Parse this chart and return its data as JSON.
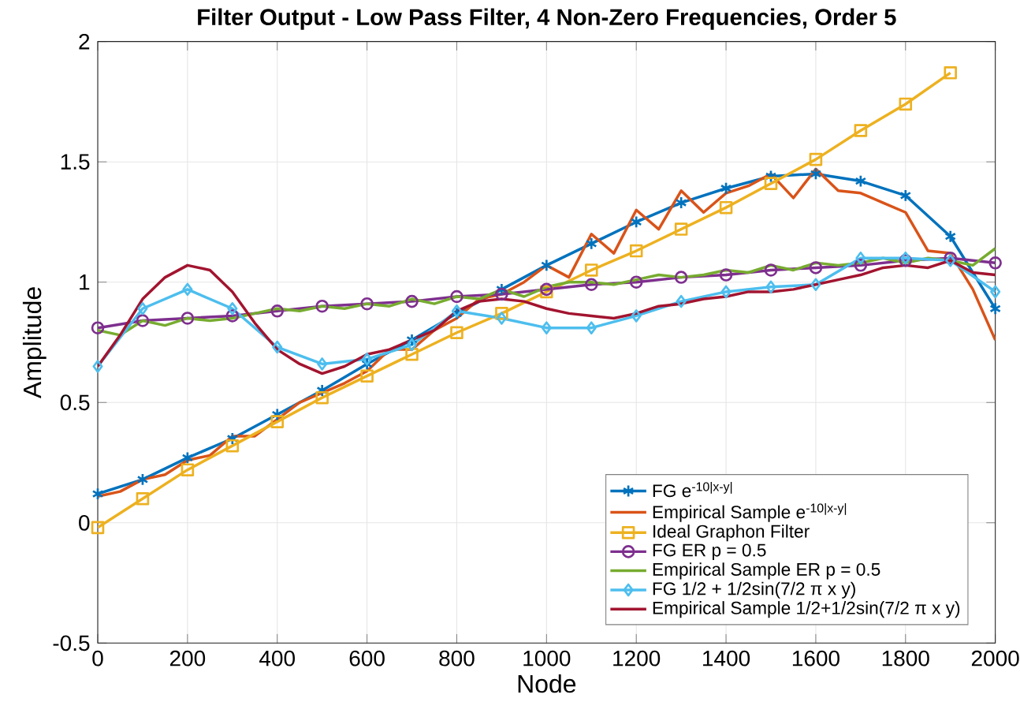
{
  "chart_data": {
    "type": "line",
    "title": "Filter Output - Low Pass Filter, 4 Non-Zero Frequencies, Order 5",
    "xlabel": "Node",
    "ylabel": "Amplitude",
    "xlim": [
      0,
      2000
    ],
    "ylim": [
      -0.5,
      2
    ],
    "xticks": [
      0,
      200,
      400,
      600,
      800,
      1000,
      1200,
      1400,
      1600,
      1800,
      2000
    ],
    "yticks": [
      -0.5,
      0,
      0.5,
      1,
      1.5,
      2
    ],
    "grid": true,
    "legend": "bottom right",
    "series": [
      {
        "name": "FG e$^{-10|x-y|}$",
        "color": "#0072bd",
        "marker": "cross",
        "x": [
          0,
          100,
          200,
          300,
          400,
          500,
          600,
          700,
          800,
          900,
          1000,
          1100,
          1200,
          1300,
          1400,
          1500,
          1600,
          1700,
          1800,
          1900,
          2000
        ],
        "values": [
          0.12,
          0.18,
          0.27,
          0.35,
          0.45,
          0.55,
          0.66,
          0.76,
          0.87,
          0.97,
          1.07,
          1.16,
          1.25,
          1.33,
          1.39,
          1.44,
          1.45,
          1.42,
          1.36,
          1.19,
          0.89
        ]
      },
      {
        "name": "Empirical Sample e$^{-10|x-y|}$",
        "color": "#d95319",
        "marker": "none",
        "x": [
          0,
          50,
          100,
          150,
          200,
          250,
          300,
          350,
          400,
          450,
          500,
          550,
          600,
          650,
          700,
          750,
          800,
          850,
          900,
          950,
          1000,
          1050,
          1100,
          1150,
          1200,
          1250,
          1300,
          1350,
          1400,
          1450,
          1500,
          1550,
          1600,
          1650,
          1700,
          1750,
          1800,
          1850,
          1900,
          1950,
          2000
        ],
        "values": [
          0.11,
          0.13,
          0.18,
          0.2,
          0.26,
          0.28,
          0.36,
          0.36,
          0.43,
          0.5,
          0.54,
          0.58,
          0.63,
          0.72,
          0.72,
          0.8,
          0.85,
          0.93,
          0.95,
          1.0,
          1.07,
          1.02,
          1.2,
          1.12,
          1.3,
          1.22,
          1.38,
          1.29,
          1.37,
          1.4,
          1.45,
          1.35,
          1.47,
          1.38,
          1.37,
          1.33,
          1.29,
          1.13,
          1.12,
          0.97,
          0.76
        ]
      },
      {
        "name": "Ideal Graphon Filter",
        "color": "#edb120",
        "marker": "square",
        "x": [
          0,
          100,
          200,
          300,
          400,
          500,
          600,
          700,
          800,
          900,
          1000,
          1100,
          1200,
          1300,
          1400,
          1500,
          1600,
          1700,
          1800,
          1900
        ],
        "values": [
          -0.02,
          0.1,
          0.22,
          0.32,
          0.42,
          0.52,
          0.61,
          0.7,
          0.79,
          0.87,
          0.96,
          1.05,
          1.13,
          1.22,
          1.31,
          1.41,
          1.51,
          1.63,
          1.74,
          1.87
        ]
      },
      {
        "name": "FG ER p = 0.5",
        "color": "#7e2f8e",
        "marker": "circle",
        "x": [
          0,
          100,
          200,
          300,
          400,
          500,
          600,
          700,
          800,
          900,
          1000,
          1100,
          1200,
          1300,
          1400,
          1500,
          1600,
          1700,
          1800,
          1900,
          2000
        ],
        "values": [
          0.81,
          0.84,
          0.85,
          0.86,
          0.88,
          0.9,
          0.91,
          0.92,
          0.94,
          0.95,
          0.97,
          0.99,
          1.0,
          1.02,
          1.03,
          1.05,
          1.06,
          1.07,
          1.09,
          1.1,
          1.08
        ]
      },
      {
        "name": "Empirical Sample ER p = 0.5",
        "color": "#77ac30",
        "marker": "none",
        "x": [
          0,
          50,
          100,
          150,
          200,
          250,
          300,
          350,
          400,
          450,
          500,
          550,
          600,
          650,
          700,
          750,
          800,
          850,
          900,
          950,
          1000,
          1050,
          1100,
          1150,
          1200,
          1250,
          1300,
          1350,
          1400,
          1450,
          1500,
          1550,
          1600,
          1650,
          1700,
          1750,
          1800,
          1850,
          1900,
          1950,
          2000
        ],
        "values": [
          0.8,
          0.78,
          0.84,
          0.82,
          0.85,
          0.84,
          0.85,
          0.87,
          0.89,
          0.88,
          0.9,
          0.89,
          0.91,
          0.9,
          0.93,
          0.91,
          0.94,
          0.93,
          0.97,
          0.94,
          0.98,
          1.0,
          1.0,
          0.99,
          1.01,
          1.03,
          1.02,
          1.03,
          1.05,
          1.04,
          1.07,
          1.05,
          1.08,
          1.07,
          1.08,
          1.1,
          1.08,
          1.1,
          1.09,
          1.07,
          1.14
        ]
      },
      {
        "name": "FG 1/2 + 1/2sin(7/2 π x y)",
        "color": "#4dbeee",
        "marker": "diamond",
        "x": [
          0,
          100,
          200,
          300,
          400,
          500,
          600,
          700,
          800,
          900,
          1000,
          1100,
          1200,
          1300,
          1400,
          1500,
          1600,
          1700,
          1800,
          1900,
          2000
        ],
        "values": [
          0.65,
          0.89,
          0.97,
          0.89,
          0.73,
          0.66,
          0.68,
          0.74,
          0.88,
          0.85,
          0.81,
          0.81,
          0.86,
          0.92,
          0.96,
          0.98,
          0.99,
          1.1,
          1.1,
          1.09,
          0.96
        ]
      },
      {
        "name": "Empirical Sample 1/2+1/2sin(7/2 π x y)",
        "color": "#a2142f",
        "marker": "none",
        "x": [
          0,
          50,
          100,
          150,
          200,
          250,
          300,
          350,
          400,
          450,
          500,
          550,
          600,
          650,
          700,
          750,
          800,
          850,
          900,
          950,
          1000,
          1050,
          1100,
          1150,
          1200,
          1250,
          1300,
          1350,
          1400,
          1450,
          1500,
          1550,
          1600,
          1650,
          1700,
          1750,
          1800,
          1850,
          1900,
          1950,
          2000
        ],
        "values": [
          0.65,
          0.78,
          0.93,
          1.02,
          1.07,
          1.05,
          0.96,
          0.83,
          0.72,
          0.66,
          0.62,
          0.65,
          0.7,
          0.72,
          0.76,
          0.8,
          0.88,
          0.92,
          0.93,
          0.92,
          0.89,
          0.87,
          0.86,
          0.85,
          0.87,
          0.9,
          0.91,
          0.93,
          0.94,
          0.96,
          0.96,
          0.97,
          0.99,
          1.01,
          1.03,
          1.06,
          1.07,
          1.06,
          1.09,
          1.04,
          1.03
        ]
      }
    ]
  }
}
